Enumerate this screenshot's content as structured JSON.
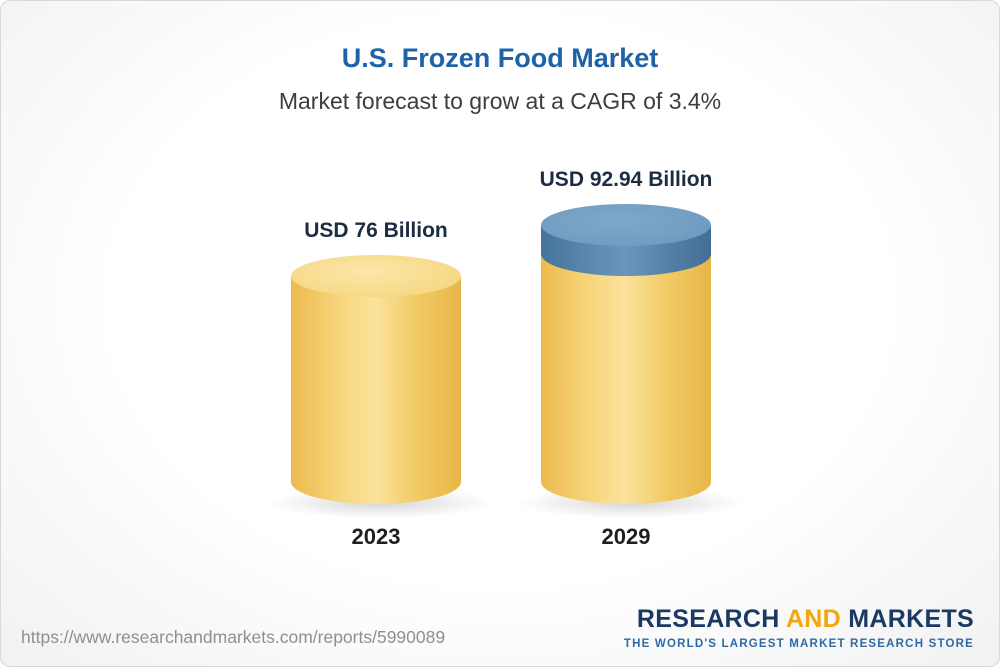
{
  "chart_data": {
    "type": "bar",
    "title": "U.S. Frozen Food Market",
    "subtitle": "Market forecast to grow at a CAGR of 3.4%",
    "cagr": "3.4%",
    "unit": "USD Billion",
    "categories": [
      "2023",
      "2029"
    ],
    "values": [
      76,
      92.94
    ],
    "value_labels": [
      "USD 76 Billion",
      "USD 92.94 Billion"
    ],
    "legend_position": "none",
    "grid": false,
    "colors": {
      "base_bar": "#f6cf6f",
      "growth_segment": "#5886ae",
      "title": "#1e63a8",
      "label": "#1c2c42"
    }
  },
  "footer": {
    "url": "https://www.researchandmarkets.com/reports/5990089",
    "logo": {
      "word1": "RESEARCH",
      "word2": "AND",
      "word3": "MARKETS",
      "tagline": "THE WORLD'S LARGEST MARKET RESEARCH STORE"
    }
  }
}
